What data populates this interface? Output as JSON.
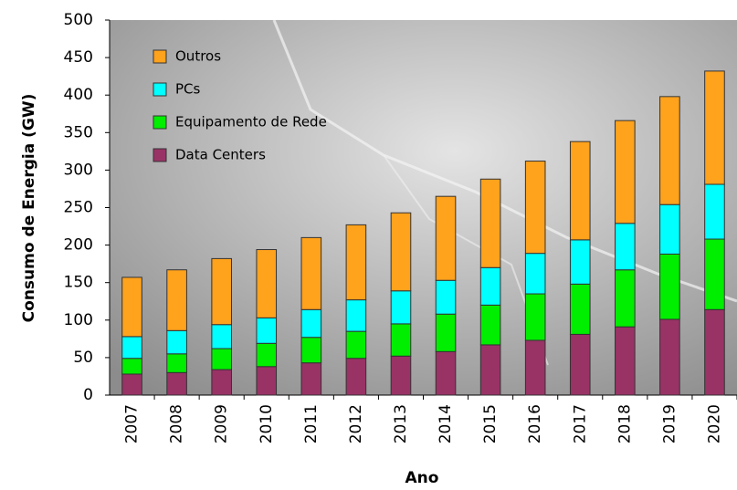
{
  "chart_data": {
    "type": "stacked-bar",
    "x_label": "Ano",
    "y_label": "Consumo de Energia (GW)",
    "categories": [
      "2007",
      "2008",
      "2009",
      "2010",
      "2011",
      "2012",
      "2013",
      "2014",
      "2015",
      "2016",
      "2017",
      "2018",
      "2019",
      "2020"
    ],
    "series": [
      {
        "name": "Data Centers",
        "color": "#993366",
        "values": [
          28,
          30,
          34,
          38,
          43,
          49,
          52,
          58,
          67,
          73,
          81,
          91,
          101,
          114
        ]
      },
      {
        "name": "Equipamento de Rede",
        "color": "#00ee00",
        "values": [
          21,
          25,
          28,
          31,
          34,
          36,
          43,
          50,
          53,
          62,
          67,
          76,
          87,
          94
        ]
      },
      {
        "name": "PCs",
        "color": "#00ffff",
        "values": [
          29,
          31,
          32,
          34,
          37,
          42,
          44,
          45,
          50,
          54,
          59,
          62,
          66,
          73
        ]
      },
      {
        "name": "Outros",
        "color": "#ffa21c",
        "values": [
          79,
          81,
          88,
          91,
          96,
          100,
          104,
          112,
          118,
          123,
          131,
          137,
          144,
          151
        ]
      }
    ],
    "ylim": [
      0,
      500
    ],
    "yticks": [
      0,
      50,
      100,
      150,
      200,
      250,
      300,
      350,
      400,
      450,
      500
    ],
    "legend": "upper-left"
  }
}
